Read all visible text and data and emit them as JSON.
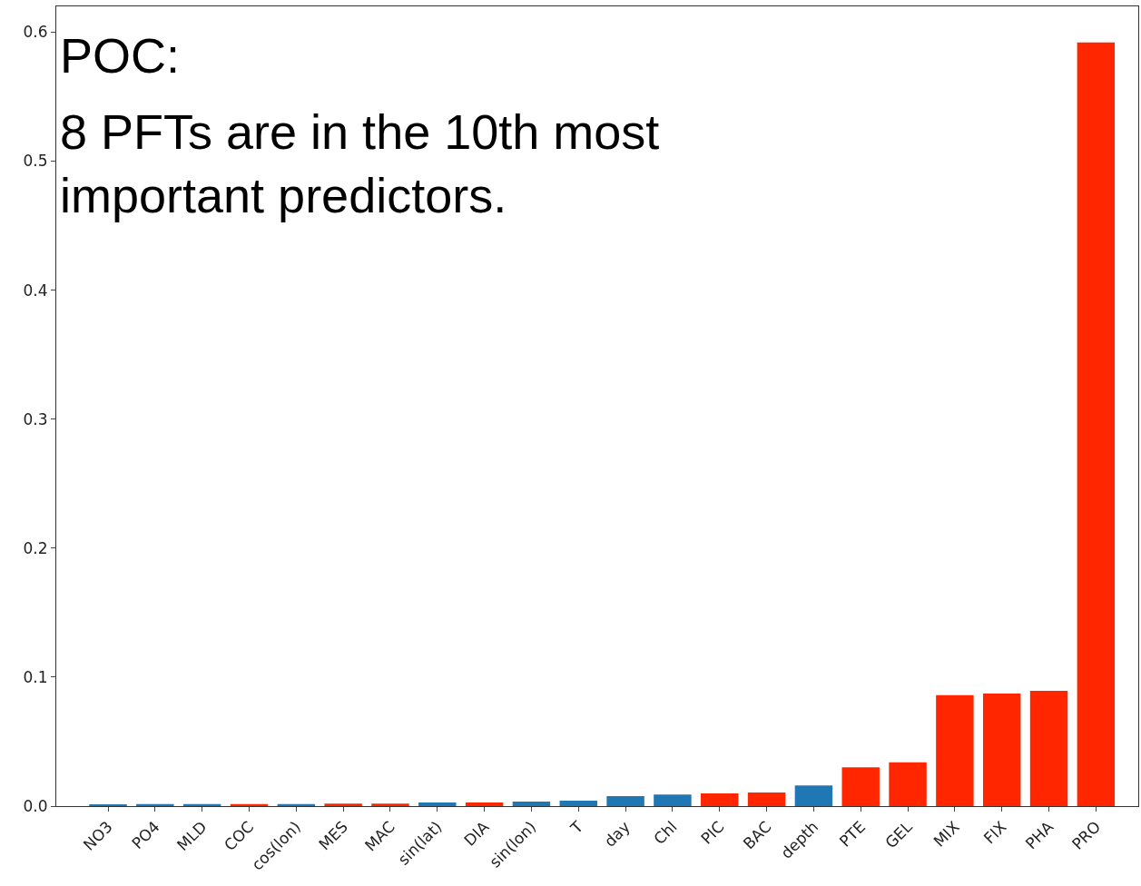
{
  "chart_data": {
    "type": "bar",
    "categories": [
      "NO3",
      "PO4",
      "MLD",
      "COC",
      "cos(lon)",
      "MES",
      "MAC",
      "sin(lat)",
      "DIA",
      "sin(lon)",
      "T",
      "day",
      "Chl",
      "PIC",
      "BAC",
      "depth",
      "PTE",
      "GEL",
      "MIX",
      "FIX",
      "PHA",
      "PRO"
    ],
    "values": [
      0.001,
      0.0015,
      0.0015,
      0.0015,
      0.0015,
      0.002,
      0.002,
      0.0028,
      0.0028,
      0.0035,
      0.0042,
      0.0077,
      0.009,
      0.0099,
      0.0106,
      0.016,
      0.03,
      0.034,
      0.086,
      0.0873,
      0.0894,
      0.592
    ],
    "colors": [
      "#1f77b4",
      "#1f77b4",
      "#1f77b4",
      "#ff2600",
      "#1f77b4",
      "#ff2600",
      "#ff2600",
      "#1f77b4",
      "#ff2600",
      "#1f77b4",
      "#1f77b4",
      "#1f77b4",
      "#1f77b4",
      "#ff2600",
      "#ff2600",
      "#1f77b4",
      "#ff2600",
      "#ff2600",
      "#ff2600",
      "#ff2600",
      "#ff2600",
      "#ff2600"
    ],
    "ylim": [
      0,
      0.62
    ],
    "yticks": [
      {
        "value": 0,
        "label": "0.0"
      },
      {
        "value": 0.1,
        "label": "0.1"
      },
      {
        "value": 0.2,
        "label": "0.2"
      },
      {
        "value": 0.3,
        "label": "0.3"
      },
      {
        "value": 0.4,
        "label": "0.4"
      },
      {
        "value": 0.5,
        "label": "0.5"
      },
      {
        "value": 0.6,
        "label": "0.6"
      }
    ],
    "annotations": [
      "POC:",
      "8 PFTs are in the 10th most\nimportant predictors."
    ]
  }
}
